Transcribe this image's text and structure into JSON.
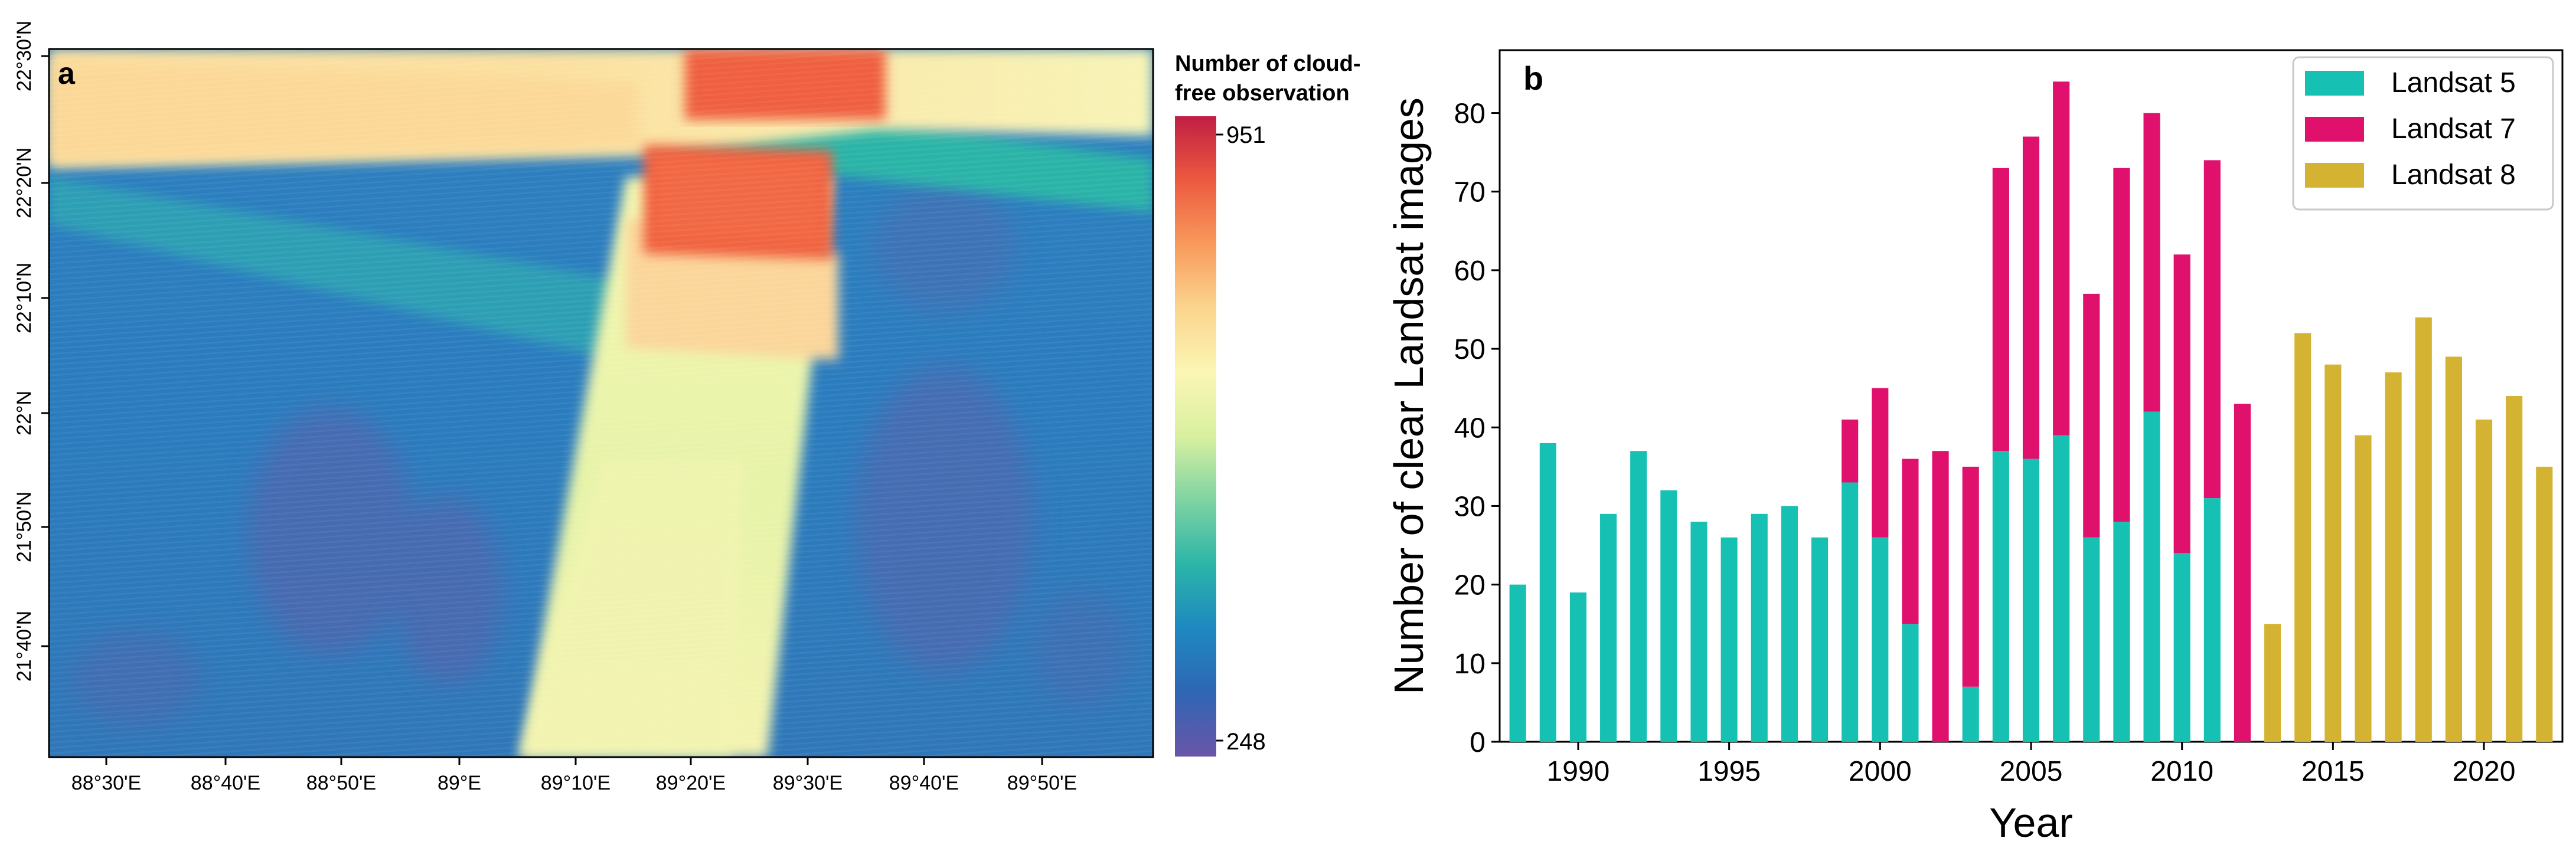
{
  "panel_a": {
    "label": "a",
    "colorbar": {
      "title_line1": "Number of cloud-",
      "title_line2": "free observation",
      "max_label": "951",
      "min_label": "248",
      "colors": [
        "#6a55a8",
        "#2f66b4",
        "#1e88c0",
        "#2bb5a8",
        "#7fd3a2",
        "#d8f0a0",
        "#fbf6b4",
        "#fbd58e",
        "#f89a5c",
        "#ec5a3f",
        "#c01e43"
      ]
    },
    "lat_labels": [
      "22°30'N",
      "22°20'N",
      "22°10'N",
      "22°N",
      "21°50'N",
      "21°40'N"
    ],
    "lon_labels": [
      "88°30'E",
      "88°40'E",
      "88°50'E",
      "89°E",
      "89°10'E",
      "89°20'E",
      "89°30'E",
      "89°40'E",
      "89°50'E"
    ]
  },
  "chart_data": {
    "type": "bar",
    "stacked": true,
    "panel_label": "b",
    "xlabel": "Year",
    "ylabel": "Number of clear Landsat images",
    "ylim": [
      0,
      88
    ],
    "yticks": [
      0,
      10,
      20,
      30,
      40,
      50,
      60,
      70,
      80
    ],
    "xlim": [
      1987.4,
      2022.6
    ],
    "xticks": [
      1990,
      1995,
      2000,
      2005,
      2010,
      2015,
      2020
    ],
    "categories": [
      1988,
      1989,
      1990,
      1991,
      1992,
      1993,
      1994,
      1995,
      1996,
      1997,
      1998,
      1999,
      2000,
      2001,
      2002,
      2003,
      2004,
      2005,
      2006,
      2007,
      2008,
      2009,
      2010,
      2011,
      2012,
      2013,
      2014,
      2015,
      2016,
      2017,
      2018,
      2019,
      2020,
      2021,
      2022
    ],
    "series": [
      {
        "name": "Landsat 5",
        "color": "#16c1b4",
        "values": [
          20,
          38,
          19,
          29,
          37,
          32,
          28,
          26,
          29,
          30,
          26,
          33,
          26,
          15,
          0,
          7,
          37,
          36,
          39,
          26,
          28,
          42,
          24,
          31,
          0,
          0,
          0,
          0,
          0,
          0,
          0,
          0,
          0,
          0,
          0
        ]
      },
      {
        "name": "Landsat 7",
        "color": "#e0106d",
        "values": [
          0,
          0,
          0,
          0,
          0,
          0,
          0,
          0,
          0,
          0,
          0,
          8,
          19,
          21,
          37,
          28,
          36,
          41,
          45,
          31,
          45,
          38,
          38,
          43,
          43,
          0,
          0,
          0,
          0,
          0,
          0,
          0,
          0,
          0,
          0
        ]
      },
      {
        "name": "Landsat 8",
        "color": "#d4b332",
        "values": [
          0,
          0,
          0,
          0,
          0,
          0,
          0,
          0,
          0,
          0,
          0,
          0,
          0,
          0,
          0,
          0,
          0,
          0,
          0,
          0,
          0,
          0,
          0,
          0,
          0,
          15,
          52,
          48,
          39,
          47,
          54,
          49,
          41,
          44,
          35
        ]
      }
    ],
    "legend_position": "top-right"
  }
}
